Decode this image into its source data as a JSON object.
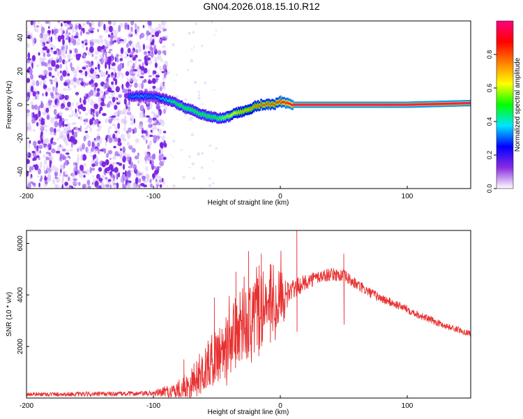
{
  "title": "GN04.2026.018.15.10.R12",
  "colorbar": {
    "label": "Normalized spectral amplitude",
    "range": [
      0,
      1
    ],
    "ticks": [
      "0.0",
      "0.2",
      "0.4",
      "0.6",
      "0.8"
    ],
    "tick_values": [
      0.0,
      0.2,
      0.4,
      0.6,
      0.8
    ],
    "colors": [
      "#ffffff",
      "#8a2be2",
      "#0000ff",
      "#00e5ff",
      "#00ff00",
      "#ffff00",
      "#ff8000",
      "#ff0000",
      "#ff0080"
    ]
  },
  "chart_data": [
    {
      "type": "heatmap",
      "name": "spectrogram",
      "xlabel": "Height of straight line (km)",
      "ylabel": "Frequency (Hz)",
      "xlim": [
        -200,
        150
      ],
      "ylim": [
        -50,
        50
      ],
      "x_ticks": [
        "-200",
        "-100",
        "0",
        "100"
      ],
      "x_tick_values": [
        -200,
        -100,
        0,
        100
      ],
      "y_ticks": [
        "-40",
        "-20",
        "0",
        "20",
        "40"
      ],
      "y_tick_values": [
        -40,
        -20,
        0,
        20,
        40
      ],
      "noise_region_x": [
        -200,
        -90
      ],
      "trace": {
        "x": [
          -120,
          -110,
          -100,
          -90,
          -85,
          -80,
          -75,
          -70,
          -65,
          -60,
          -55,
          -50,
          -45,
          -40,
          -35,
          -30,
          -25,
          -20,
          -15,
          -10,
          -5,
          0,
          5,
          10,
          50,
          100,
          150
        ],
        "y": [
          5,
          5,
          5,
          3,
          2,
          0,
          -2,
          -3,
          -5,
          -6,
          -7,
          -8,
          -8,
          -7,
          -5,
          -4,
          -3,
          -1,
          0,
          0,
          0,
          2,
          1,
          0,
          0,
          0,
          1
        ],
        "amplitude": [
          0.3,
          0.35,
          0.3,
          0.4,
          0.45,
          0.5,
          0.5,
          0.5,
          0.5,
          0.5,
          0.5,
          0.5,
          0.55,
          0.6,
          0.65,
          0.7,
          0.7,
          0.75,
          0.8,
          0.8,
          0.8,
          0.85,
          0.9,
          0.95,
          0.95,
          0.95,
          0.95
        ]
      }
    },
    {
      "type": "line",
      "name": "snr",
      "color": "#e83030",
      "xlabel": "Height of straight line (km)",
      "ylabel": "SNR (10 * v/v)",
      "xlim": [
        -200,
        150
      ],
      "ylim": [
        0,
        6500
      ],
      "x_ticks": [
        "-200",
        "-100",
        "0",
        "100"
      ],
      "x_tick_values": [
        -200,
        -100,
        0,
        100
      ],
      "y_ticks": [
        "2000",
        "4000",
        "6000"
      ],
      "y_tick_values": [
        2000,
        4000,
        6000
      ],
      "envelope": {
        "x": [
          -200,
          -150,
          -100,
          -80,
          -70,
          -60,
          -50,
          -40,
          -30,
          -20,
          -10,
          0,
          10,
          20,
          30,
          40,
          50,
          60,
          70,
          80,
          90,
          100,
          110,
          120,
          130,
          140,
          150
        ],
        "y": [
          150,
          150,
          180,
          300,
          600,
          1100,
          1700,
          2200,
          2800,
          3200,
          3500,
          3900,
          4200,
          4500,
          4700,
          4800,
          4750,
          4400,
          4100,
          3850,
          3650,
          3450,
          3200,
          3000,
          2800,
          2650,
          2500
        ],
        "noise": [
          80,
          90,
          100,
          400,
          700,
          900,
          1100,
          1400,
          1500,
          1500,
          1300,
          900,
          400,
          300,
          280,
          250,
          250,
          230,
          200,
          180,
          170,
          160,
          150,
          140,
          130,
          120,
          110
        ]
      },
      "spikes": {
        "x": [
          -76,
          -52,
          -35,
          -25,
          -15,
          -8,
          13,
          50
        ],
        "y": [
          1500,
          3900,
          4900,
          5700,
          5600,
          5200,
          6500,
          5600
        ]
      }
    }
  ]
}
